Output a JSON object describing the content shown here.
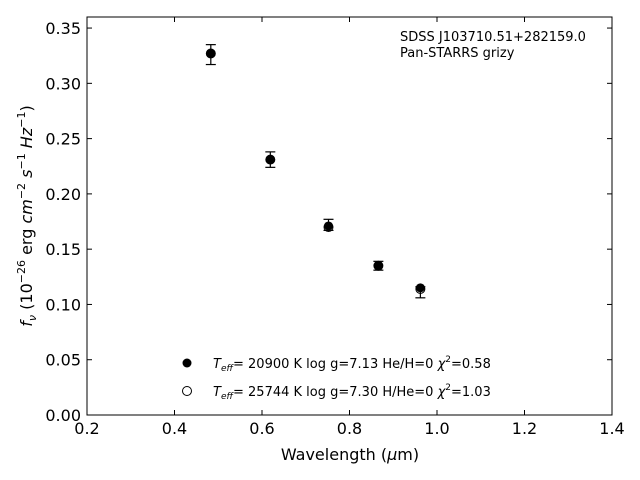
{
  "chart_data": {
    "type": "scatter",
    "xlabel": "Wavelength (μm)",
    "ylabel": "fν (10⁻²⁶ erg cm⁻² s⁻¹ Hz⁻¹)",
    "xlim": [
      0.2,
      1.4
    ],
    "ylim": [
      0.0,
      0.36
    ],
    "x_ticks": [
      "0.2",
      "0.4",
      "0.6",
      "0.8",
      "1.0",
      "1.2",
      "1.4"
    ],
    "y_ticks": [
      "0.00",
      "0.05",
      "0.10",
      "0.15",
      "0.20",
      "0.25",
      "0.30",
      "0.35"
    ],
    "grid": false,
    "legend_position": "bottom-center",
    "annotations": [
      "SDSS J103710.51+282159.0",
      "Pan-STARRS grizy"
    ],
    "series": [
      {
        "name": "Teff= 20900 K  log g=7.13  He/H=0  χ²=0.58",
        "marker": "filled-circle",
        "x": [
          0.483,
          0.619,
          0.752,
          0.866,
          0.962
        ],
        "y": [
          0.327,
          0.231,
          0.171,
          0.135,
          0.115
        ]
      },
      {
        "name": "Teff= 25744 K  log g=7.30  H/He=0  χ²=1.03",
        "marker": "open-circle",
        "x": [
          0.483,
          0.619,
          0.752,
          0.866,
          0.962
        ],
        "y": [
          0.327,
          0.231,
          0.17,
          0.135,
          0.114
        ]
      },
      {
        "name": "Pan-STARRS grizy",
        "marker": "errorbar",
        "x": [
          0.483,
          0.619,
          0.752,
          0.866,
          0.962
        ],
        "y": [
          0.326,
          0.231,
          0.172,
          0.135,
          0.111
        ],
        "yerr": [
          0.009,
          0.007,
          0.005,
          0.004,
          0.005
        ]
      }
    ]
  }
}
